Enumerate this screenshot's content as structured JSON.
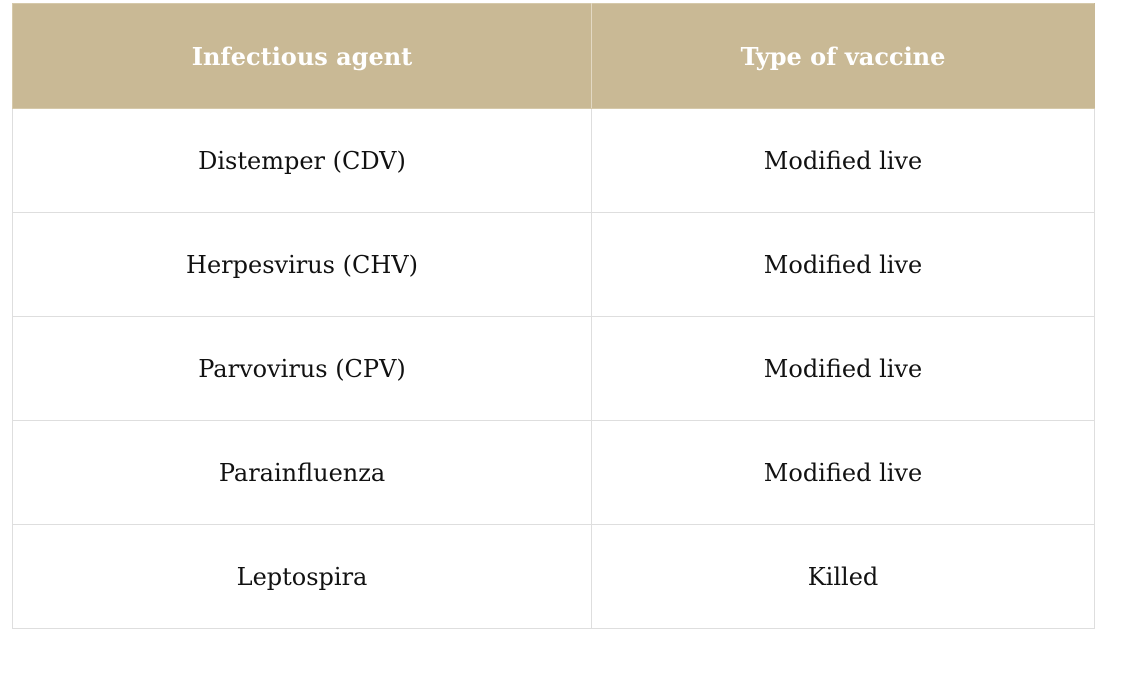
{
  "table": {
    "headers": [
      "Infectious agent",
      "Type of vaccine"
    ],
    "rows": [
      [
        "Distemper (CDV)",
        "Modified live"
      ],
      [
        "Herpesvirus (CHV)",
        "Modified live"
      ],
      [
        "Parvovirus (CPV)",
        "Modified live"
      ],
      [
        "Parainfluenza",
        "Modified live"
      ],
      [
        "Leptospira",
        "Killed"
      ]
    ]
  },
  "colors": {
    "header_background": "#c9b995",
    "header_text": "#ffffff",
    "cell_text": "#111111",
    "border": "#dedede"
  }
}
